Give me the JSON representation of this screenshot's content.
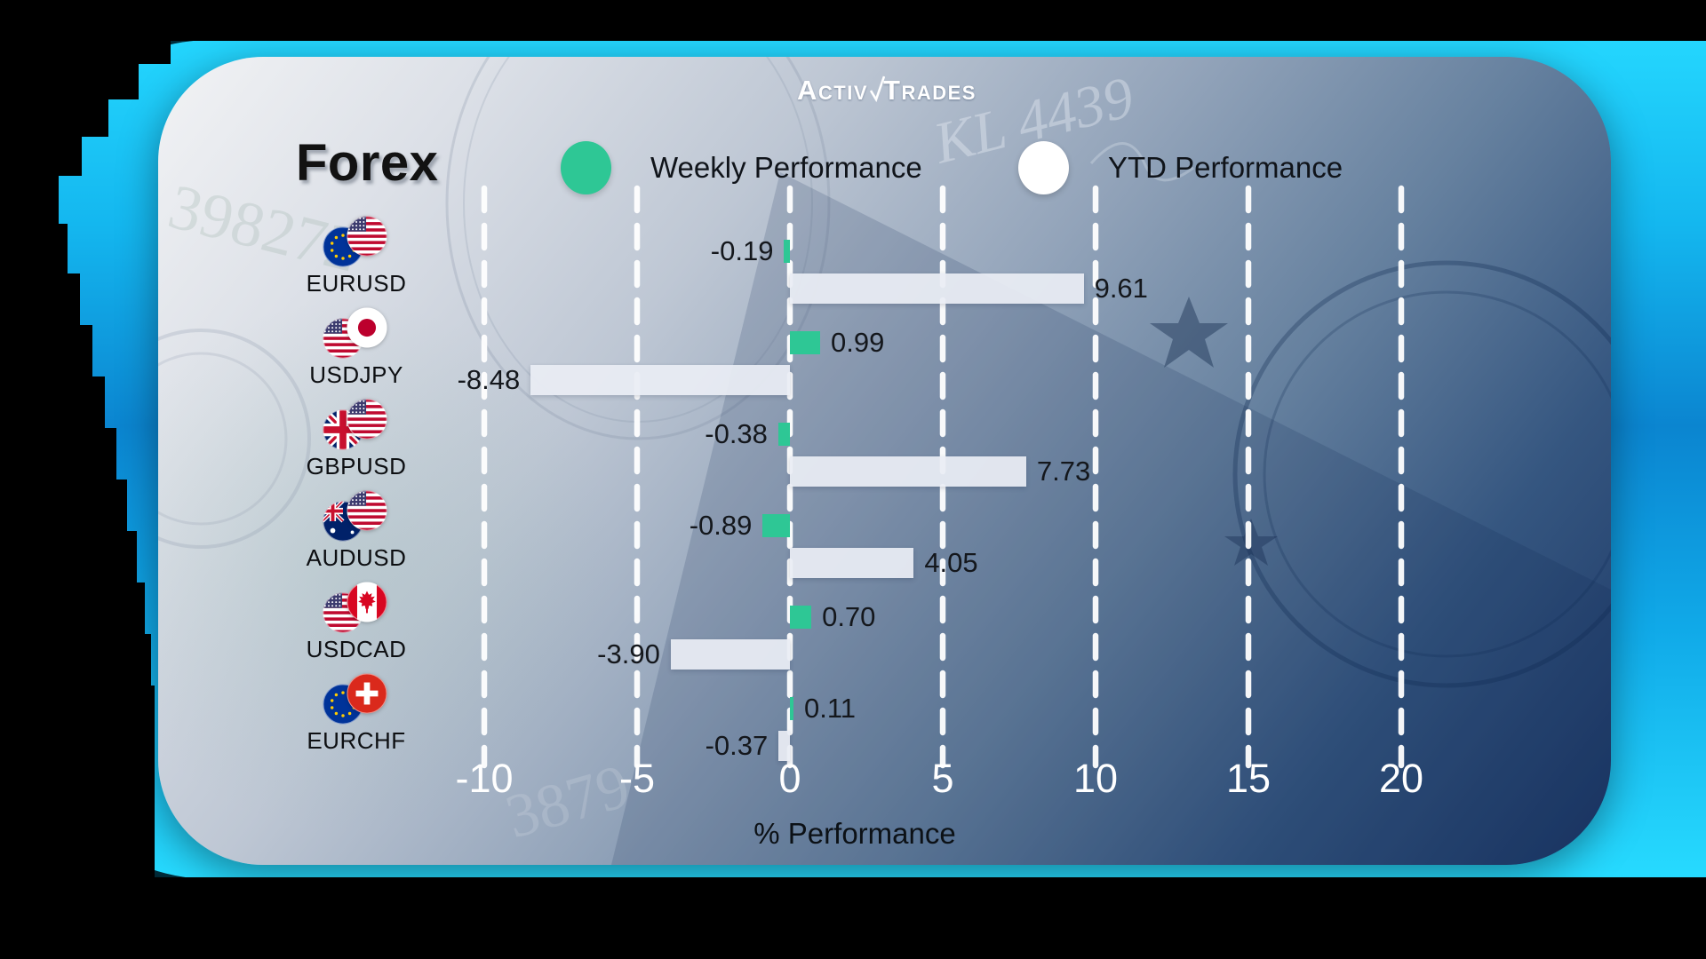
{
  "brand": {
    "logo_text_1": "Activ",
    "logo_text_2": "Trades",
    "checkmark_icon": "check"
  },
  "title": "Forex",
  "legend": {
    "weekly": {
      "label": "Weekly Performance",
      "color": "#2ec795"
    },
    "ytd": {
      "label": "YTD Performance",
      "color": "#ffffff"
    }
  },
  "axis": {
    "tick_labels": [
      "-10",
      "-5",
      "0",
      "5",
      "10",
      "15",
      "20"
    ],
    "xlabel": "% Performance"
  },
  "pairs": [
    {
      "name": "EURUSD",
      "base_flag": "eu",
      "quote_flag": "us",
      "weekly_label": "-0.19",
      "ytd_label": "9.61"
    },
    {
      "name": "USDJPY",
      "base_flag": "us",
      "quote_flag": "jp",
      "weekly_label": "0.99",
      "ytd_label": "-8.48"
    },
    {
      "name": "GBPUSD",
      "base_flag": "gb",
      "quote_flag": "us",
      "weekly_label": "-0.38",
      "ytd_label": "7.73"
    },
    {
      "name": "AUDUSD",
      "base_flag": "au",
      "quote_flag": "us",
      "weekly_label": "-0.89",
      "ytd_label": "4.05"
    },
    {
      "name": "USDCAD",
      "base_flag": "us",
      "quote_flag": "ca",
      "weekly_label": "0.70",
      "ytd_label": "-3.90"
    },
    {
      "name": "EURCHF",
      "base_flag": "eu",
      "quote_flag": "ch",
      "weekly_label": "0.11",
      "ytd_label": "-0.37"
    }
  ],
  "chart_data": {
    "type": "bar",
    "orientation": "horizontal",
    "title": "Forex",
    "categories": [
      "EURUSD",
      "USDJPY",
      "GBPUSD",
      "AUDUSD",
      "USDCAD",
      "EURCHF"
    ],
    "series": [
      {
        "name": "Weekly Performance",
        "color": "#2ec795",
        "values": [
          -0.19,
          0.99,
          -0.38,
          -0.89,
          0.7,
          0.11
        ]
      },
      {
        "name": "YTD Performance",
        "color": "#e9edf4",
        "values": [
          9.61,
          -8.48,
          7.73,
          4.05,
          -3.9,
          -0.37
        ]
      }
    ],
    "xlabel": "% Performance",
    "xticks": [
      -10,
      -5,
      0,
      5,
      10,
      15,
      20
    ],
    "xlim": [
      -12.5,
      22.5
    ],
    "grid": "dashed-vertical-white",
    "legend_position": "top"
  },
  "colors": {
    "weekly_bar": "#2ec795",
    "ytd_bar": "rgba(233,237,244,0.93)",
    "frame_cyan": "#14b7ef",
    "card_dark": "#1a3563",
    "value_text": "#14171c",
    "tick_text": "#ffffff"
  }
}
